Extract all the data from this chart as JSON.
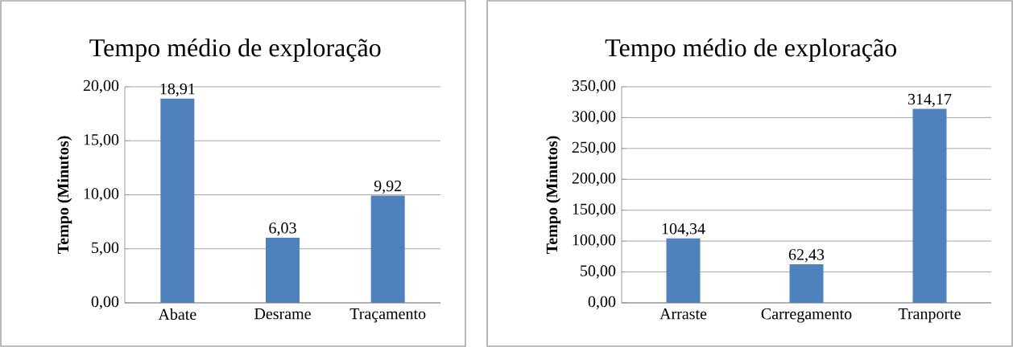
{
  "chart_data": [
    {
      "type": "bar",
      "title": "Tempo médio de exploração",
      "ylabel": "Tempo (Minutos)",
      "categories": [
        "Abate",
        "Desrame",
        "Traçamento"
      ],
      "values": [
        18.91,
        6.03,
        9.92
      ],
      "value_labels": [
        "18,91",
        "6,03",
        "9,92"
      ],
      "color": "#4f81bd",
      "ylim": [
        0,
        20
      ],
      "yticks": [
        {
          "value": 0,
          "label": "0,00"
        },
        {
          "value": 5,
          "label": "5,00"
        },
        {
          "value": 10,
          "label": "10,00"
        },
        {
          "value": 15,
          "label": "15,00"
        },
        {
          "value": 20,
          "label": "20,00"
        }
      ],
      "grid": "y"
    },
    {
      "type": "bar",
      "title": "Tempo médio de exploração",
      "ylabel": "Tempo (Minutos)",
      "categories": [
        "Arraste",
        "Carregamento",
        "Tranporte"
      ],
      "values": [
        104.34,
        62.43,
        314.17
      ],
      "value_labels": [
        "104,34",
        "62,43",
        "314,17"
      ],
      "color": "#4f81bd",
      "ylim": [
        0,
        350
      ],
      "yticks": [
        {
          "value": 0,
          "label": "0,00"
        },
        {
          "value": 50,
          "label": "50,00"
        },
        {
          "value": 100,
          "label": "100,00"
        },
        {
          "value": 150,
          "label": "150,00"
        },
        {
          "value": 200,
          "label": "200,00"
        },
        {
          "value": 250,
          "label": "250,00"
        },
        {
          "value": 300,
          "label": "300,00"
        },
        {
          "value": 350,
          "label": "350,00"
        }
      ],
      "grid": "y"
    }
  ]
}
